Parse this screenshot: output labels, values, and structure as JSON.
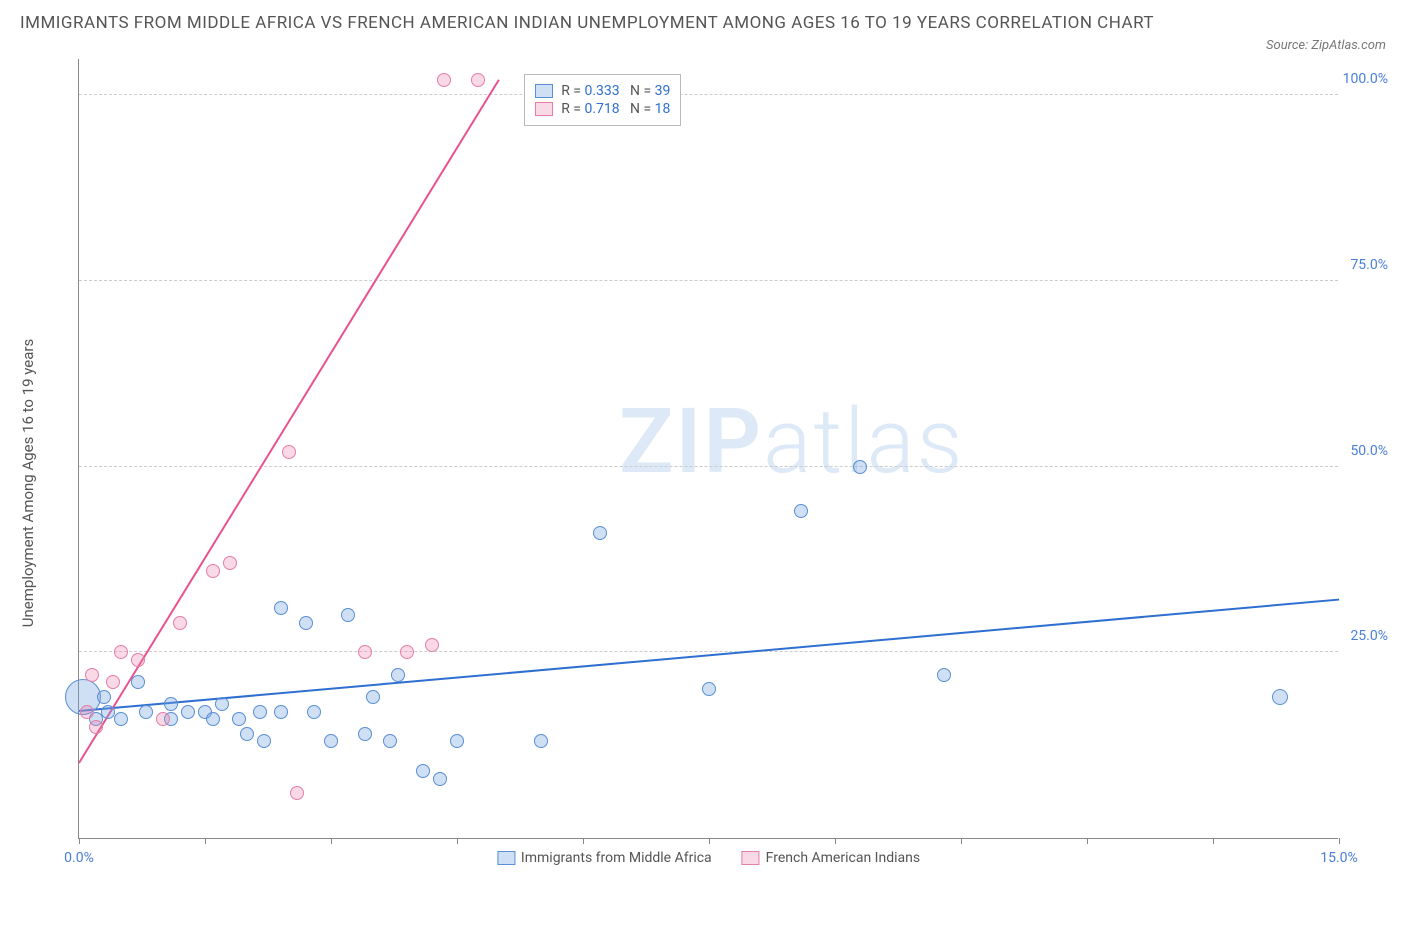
{
  "title": "IMMIGRANTS FROM MIDDLE AFRICA VS FRENCH AMERICAN INDIAN UNEMPLOYMENT AMONG AGES 16 TO 19 YEARS CORRELATION CHART",
  "source": "Source: ZipAtlas.com",
  "ylabel": "Unemployment Among Ages 16 to 19 years",
  "watermark_a": "ZIP",
  "watermark_b": "atlas",
  "chart": {
    "type": "scatter",
    "xlim": [
      0,
      15
    ],
    "ylim": [
      0,
      105
    ],
    "xticks": [
      0,
      1.5,
      3,
      4.5,
      6,
      7.5,
      9,
      10.5,
      12,
      13.5,
      15
    ],
    "xtick_labels": {
      "0": "0.0%",
      "15": "15.0%"
    },
    "yticks": [
      25,
      50,
      75,
      100
    ],
    "ytick_labels": {
      "25": "25.0%",
      "50": "50.0%",
      "75": "75.0%",
      "100": "100.0%"
    },
    "grid_color": "#cccccc",
    "axis_color": "#888888",
    "background_color": "#ffffff",
    "label_color": "#4a7fd8",
    "series": [
      {
        "name": "Immigrants from Middle Africa",
        "color_fill": "rgba(118,164,224,0.35)",
        "color_stroke": "#5a8fd4",
        "trend_color": "#2e6fd0",
        "R": "0.333",
        "N": "39",
        "points": [
          {
            "x": 0.05,
            "y": 19,
            "r": 18
          },
          {
            "x": 0.2,
            "y": 16,
            "r": 7
          },
          {
            "x": 0.3,
            "y": 19,
            "r": 7
          },
          {
            "x": 0.35,
            "y": 17,
            "r": 7
          },
          {
            "x": 0.5,
            "y": 16,
            "r": 7
          },
          {
            "x": 0.7,
            "y": 21,
            "r": 7
          },
          {
            "x": 0.8,
            "y": 17,
            "r": 7
          },
          {
            "x": 1.1,
            "y": 18,
            "r": 7
          },
          {
            "x": 1.1,
            "y": 16,
            "r": 7
          },
          {
            "x": 1.3,
            "y": 17,
            "r": 7
          },
          {
            "x": 1.5,
            "y": 17,
            "r": 7
          },
          {
            "x": 1.6,
            "y": 16,
            "r": 7
          },
          {
            "x": 1.7,
            "y": 18,
            "r": 7
          },
          {
            "x": 1.9,
            "y": 16,
            "r": 7
          },
          {
            "x": 2.0,
            "y": 14,
            "r": 7
          },
          {
            "x": 2.15,
            "y": 17,
            "r": 7
          },
          {
            "x": 2.2,
            "y": 13,
            "r": 7
          },
          {
            "x": 2.4,
            "y": 31,
            "r": 7
          },
          {
            "x": 2.4,
            "y": 17,
            "r": 7
          },
          {
            "x": 2.7,
            "y": 29,
            "r": 7
          },
          {
            "x": 2.8,
            "y": 17,
            "r": 7
          },
          {
            "x": 3.0,
            "y": 13,
            "r": 7
          },
          {
            "x": 3.2,
            "y": 30,
            "r": 7
          },
          {
            "x": 3.4,
            "y": 14,
            "r": 7
          },
          {
            "x": 3.5,
            "y": 19,
            "r": 7
          },
          {
            "x": 3.7,
            "y": 13,
            "r": 7
          },
          {
            "x": 3.8,
            "y": 22,
            "r": 7
          },
          {
            "x": 4.1,
            "y": 9,
            "r": 7
          },
          {
            "x": 4.3,
            "y": 8,
            "r": 7
          },
          {
            "x": 4.5,
            "y": 13,
            "r": 7
          },
          {
            "x": 5.5,
            "y": 13,
            "r": 7
          },
          {
            "x": 6.2,
            "y": 41,
            "r": 7
          },
          {
            "x": 7.5,
            "y": 20,
            "r": 7
          },
          {
            "x": 8.6,
            "y": 44,
            "r": 7
          },
          {
            "x": 9.3,
            "y": 50,
            "r": 7
          },
          {
            "x": 10.3,
            "y": 22,
            "r": 7
          },
          {
            "x": 14.3,
            "y": 19,
            "r": 8
          }
        ],
        "trend": {
          "x1": 0,
          "y1": 17,
          "x2": 15,
          "y2": 32
        }
      },
      {
        "name": "French American Indians",
        "color_fill": "rgba(235,130,170,0.30)",
        "color_stroke": "#e37fa8",
        "trend_color": "#e8528f",
        "R": "0.718",
        "N": "18",
        "points": [
          {
            "x": 0.1,
            "y": 17,
            "r": 7
          },
          {
            "x": 0.15,
            "y": 22,
            "r": 7
          },
          {
            "x": 0.2,
            "y": 15,
            "r": 7
          },
          {
            "x": 0.4,
            "y": 21,
            "r": 7
          },
          {
            "x": 0.5,
            "y": 25,
            "r": 7
          },
          {
            "x": 0.7,
            "y": 24,
            "r": 7
          },
          {
            "x": 1.0,
            "y": 16,
            "r": 7
          },
          {
            "x": 1.2,
            "y": 29,
            "r": 7
          },
          {
            "x": 1.6,
            "y": 36,
            "r": 7
          },
          {
            "x": 1.8,
            "y": 37,
            "r": 7
          },
          {
            "x": 2.5,
            "y": 52,
            "r": 7
          },
          {
            "x": 2.6,
            "y": 6,
            "r": 7
          },
          {
            "x": 3.4,
            "y": 25,
            "r": 7
          },
          {
            "x": 3.9,
            "y": 25,
            "r": 7
          },
          {
            "x": 4.2,
            "y": 26,
            "r": 7
          },
          {
            "x": 4.35,
            "y": 102,
            "r": 7
          },
          {
            "x": 4.75,
            "y": 102,
            "r": 7
          }
        ],
        "trend": {
          "x1": 0,
          "y1": 10,
          "x2": 5.0,
          "y2": 102
        }
      }
    ]
  },
  "legend_top": {
    "R_label": "R =",
    "N_label": "N ="
  },
  "legend_bottom": [
    {
      "label": "Immigrants from Middle Africa",
      "fill": "rgba(118,164,224,0.35)",
      "stroke": "#5a8fd4"
    },
    {
      "label": "French American Indians",
      "fill": "rgba(235,130,170,0.30)",
      "stroke": "#e37fa8"
    }
  ]
}
